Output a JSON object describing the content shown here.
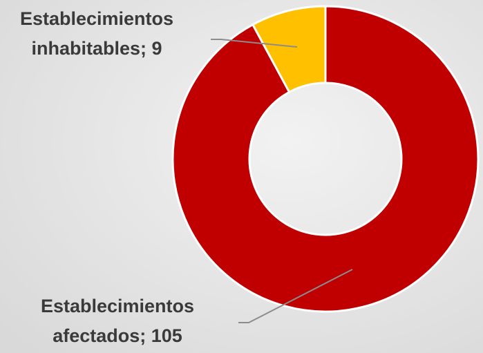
{
  "chart_data": {
    "type": "donut",
    "values": [
      105,
      9
    ],
    "value_labels": [
      "Establecimientos afectados; 105",
      "Establecimientos inhabitables; 9"
    ],
    "colors": [
      "#c00000",
      "#ffc000"
    ]
  }
}
